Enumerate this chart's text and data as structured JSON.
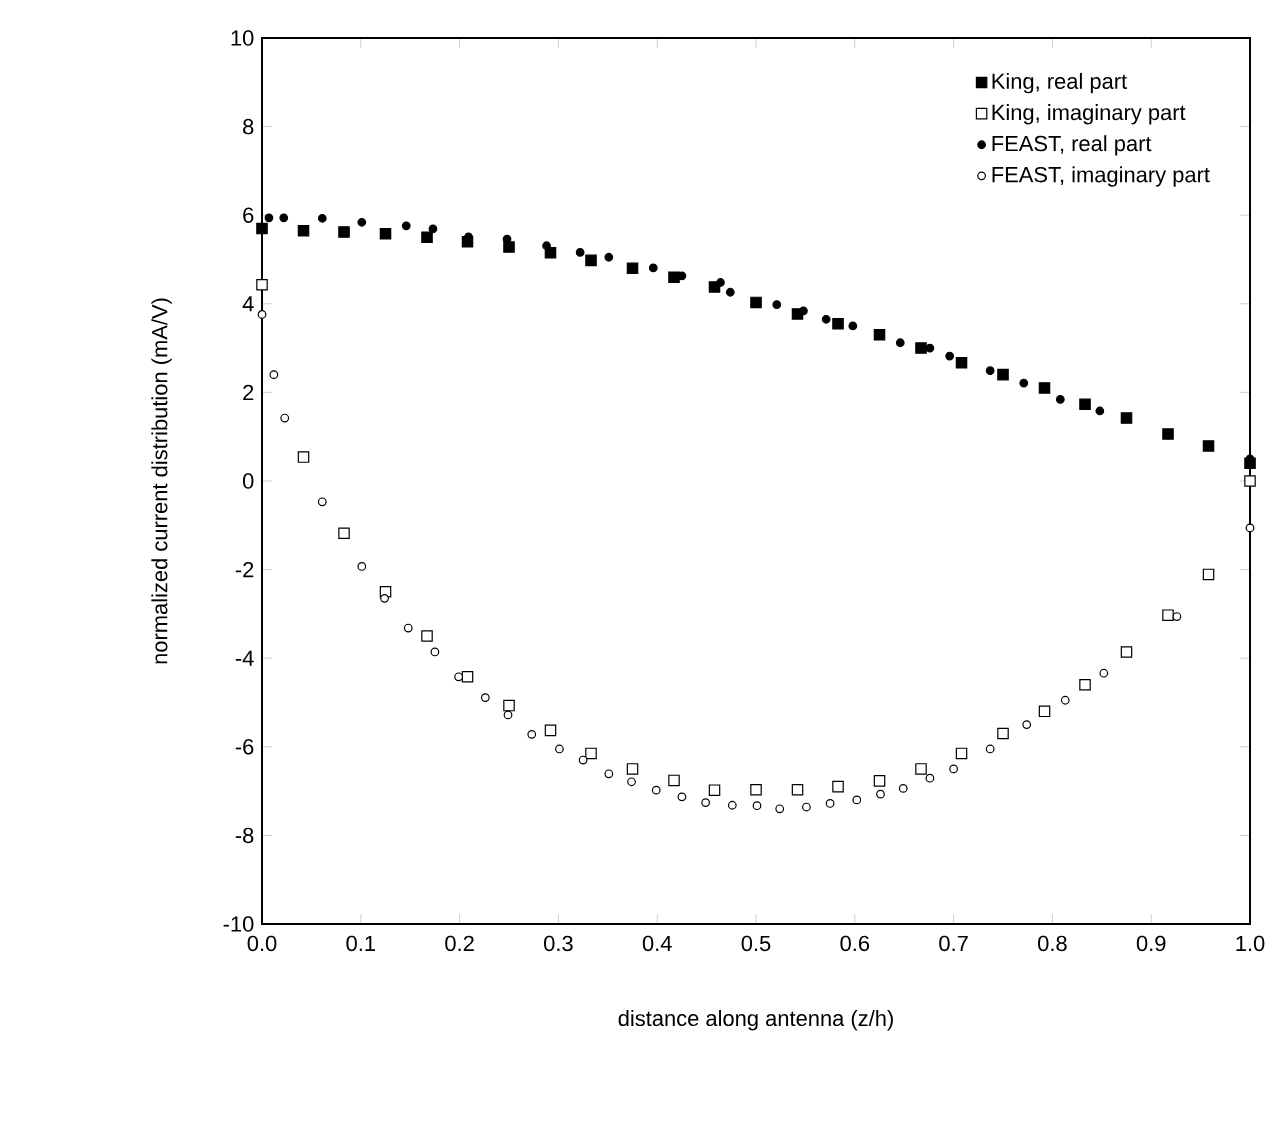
{
  "chart_data": {
    "type": "scatter",
    "xlabel": "distance along antenna (z/h)",
    "ylabel": "normalized current distribution (mA/V)",
    "xlim": [
      0,
      1
    ],
    "ylim": [
      -10,
      10
    ],
    "xticks": [
      {
        "value": 0,
        "label": "0.0"
      },
      0.1,
      0.2,
      0.3,
      0.4,
      0.5,
      0.6,
      0.7,
      0.8,
      0.9,
      {
        "value": 1,
        "label": "1.0"
      }
    ],
    "yticks": [
      -10,
      -8,
      -6,
      -4,
      -2,
      0,
      2,
      4,
      6,
      8,
      10
    ],
    "grid": false,
    "legend": "top right",
    "series": [
      {
        "name": "King, real part",
        "color": "#000000",
        "marker": "square",
        "x": [
          0,
          0.042,
          0.083,
          0.125,
          0.167,
          0.208,
          0.25,
          0.292,
          0.333,
          0.375,
          0.417,
          0.458,
          0.5,
          0.542,
          0.583,
          0.625,
          0.667,
          0.708,
          0.75,
          0.792,
          0.833,
          0.875,
          0.917,
          0.958,
          1
        ],
        "values": [
          5.7,
          5.65,
          5.62,
          5.58,
          5.5,
          5.4,
          5.28,
          5.15,
          4.98,
          4.8,
          4.6,
          4.38,
          4.03,
          3.77,
          3.55,
          3.3,
          3.0,
          2.67,
          2.4,
          2.1,
          1.73,
          1.42,
          1.06,
          0.79,
          0.4
        ]
      },
      {
        "name": "King, imaginary part",
        "color": "#ffffff",
        "marker": "square",
        "x": [
          0,
          0.042,
          0.083,
          0.125,
          0.167,
          0.208,
          0.25,
          0.292,
          0.333,
          0.375,
          0.417,
          0.458,
          0.5,
          0.542,
          0.583,
          0.625,
          0.667,
          0.708,
          0.75,
          0.792,
          0.833,
          0.875,
          0.917,
          0.958,
          1
        ],
        "values": [
          4.43,
          0.54,
          -1.18,
          -2.5,
          -3.5,
          -4.42,
          -5.07,
          -5.63,
          -6.15,
          -6.5,
          -6.76,
          -6.98,
          -6.97,
          -6.97,
          -6.9,
          -6.77,
          -6.5,
          -6.15,
          -5.7,
          -5.2,
          -4.6,
          -3.86,
          -3.03,
          -2.11,
          0
        ]
      },
      {
        "name": "FEAST, real part",
        "color": "#000000",
        "marker": "circle",
        "x": [
          0.007,
          0.022,
          0.061,
          0.101,
          0.146,
          0.173,
          0.209,
          0.248,
          0.288,
          0.322,
          0.351,
          0.396,
          0.425,
          0.464,
          0.474,
          0.521,
          0.548,
          0.571,
          0.598,
          0.646,
          0.676,
          0.696,
          0.737,
          0.771,
          0.808,
          0.848,
          1
        ],
        "values": [
          5.94,
          5.94,
          5.93,
          5.84,
          5.76,
          5.69,
          5.51,
          5.46,
          5.31,
          5.16,
          5.05,
          4.81,
          4.63,
          4.48,
          4.26,
          3.98,
          3.84,
          3.65,
          3.5,
          3.12,
          3.0,
          2.82,
          2.49,
          2.21,
          1.84,
          1.58,
          0.5
        ]
      },
      {
        "name": "FEAST, imaginary part",
        "color": "#ffffff",
        "marker": "circle",
        "x": [
          0,
          0.012,
          0.023,
          0.061,
          0.101,
          0.124,
          0.148,
          0.175,
          0.199,
          0.226,
          0.249,
          0.273,
          0.301,
          0.325,
          0.351,
          0.374,
          0.399,
          0.425,
          0.449,
          0.476,
          0.501,
          0.524,
          0.551,
          0.575,
          0.602,
          0.626,
          0.649,
          0.676,
          0.7,
          0.737,
          0.774,
          0.813,
          0.852,
          0.926,
          1
        ],
        "values": [
          3.76,
          2.4,
          1.42,
          -0.47,
          -1.93,
          -2.65,
          -3.32,
          -3.86,
          -4.42,
          -4.89,
          -5.28,
          -5.72,
          -6.05,
          -6.3,
          -6.61,
          -6.79,
          -6.98,
          -7.13,
          -7.26,
          -7.32,
          -7.33,
          -7.4,
          -7.36,
          -7.28,
          -7.2,
          -7.07,
          -6.94,
          -6.71,
          -6.5,
          -6.05,
          -5.5,
          -4.95,
          -4.34,
          -3.06,
          -1.06
        ]
      }
    ]
  }
}
